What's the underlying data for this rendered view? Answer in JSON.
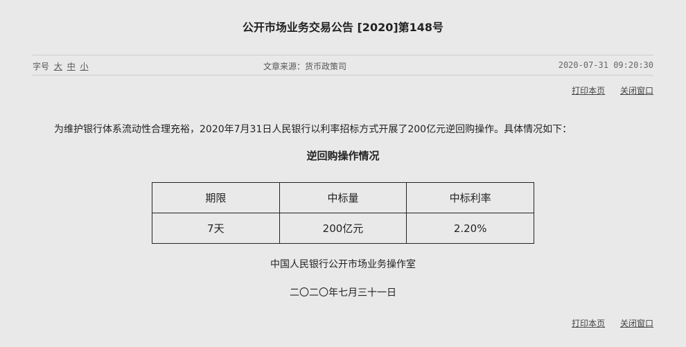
{
  "title": "公开市场业务交易公告 [2020]第148号",
  "font_size": {
    "label": "字号",
    "large": "大",
    "medium": "中",
    "small": "小"
  },
  "source": "文章来源：货币政策司",
  "timestamp": "2020-07-31 09:20:30",
  "actions": {
    "print": "打印本页",
    "close": "关闭窗口"
  },
  "paragraph": "为维护银行体系流动性合理充裕，2020年7月31日人民银行以利率招标方式开展了200亿元逆回购操作。具体情况如下：",
  "subtitle": "逆回购操作情况",
  "table": {
    "headers": [
      "期限",
      "中标量",
      "中标利率"
    ],
    "rows": [
      [
        "7天",
        "200亿元",
        "2.20%"
      ]
    ]
  },
  "signature": "中国人民银行公开市场业务操作室",
  "date": "二〇二〇年七月三十一日"
}
